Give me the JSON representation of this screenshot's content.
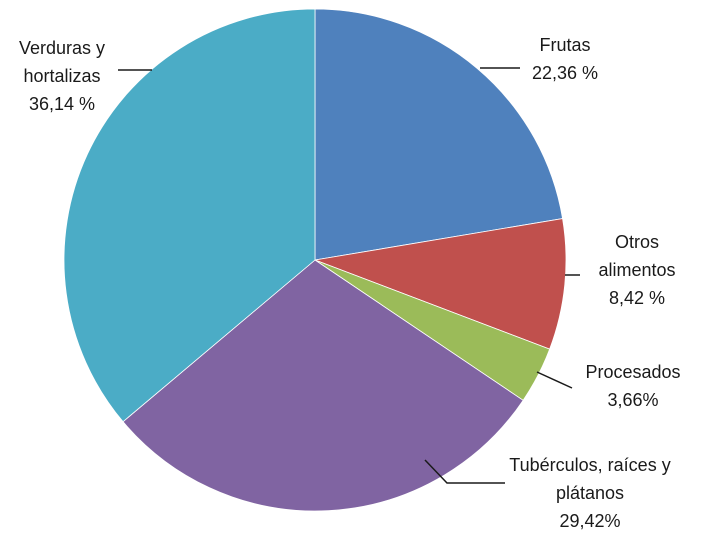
{
  "chart_data": {
    "type": "pie",
    "categories": [
      "Frutas",
      "Otros alimentos",
      "Procesados",
      "Tubérculos, raíces y plátanos",
      "Verduras y hortalizas"
    ],
    "values": [
      22.36,
      8.42,
      3.66,
      29.42,
      36.14
    ],
    "value_labels": [
      "22,36 %",
      "8,42 %",
      "3,66%",
      "29,42%",
      "36,14 %"
    ],
    "colors": [
      "#4f81bd",
      "#c0504d",
      "#9bbb59",
      "#8064a2",
      "#4bacc6"
    ]
  }
}
